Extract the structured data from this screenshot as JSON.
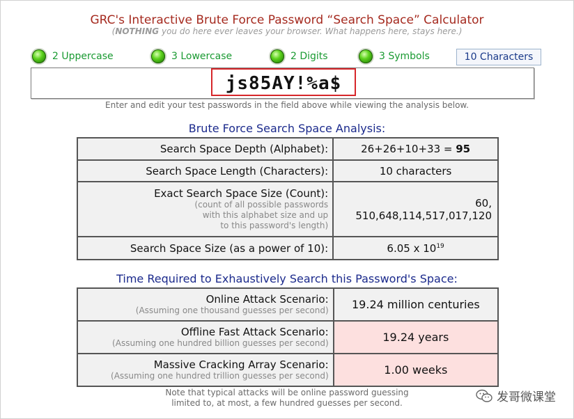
{
  "header": {
    "title": "GRC's Interactive Brute Force Password “Search Space” Calculator",
    "subtitle_bold": "NOTHING",
    "subtitle_rest": " you do here ever leaves your browser. What happens here, stays here.",
    "subtitle_open": "(",
    "subtitle_close": ")"
  },
  "indicators": [
    {
      "label": "2 Uppercase",
      "icon": "green-led-icon",
      "color": "#1a9a32"
    },
    {
      "label": "3 Lowercase",
      "icon": "green-led-icon",
      "color": "#1a9a32"
    },
    {
      "label": "2 Digits",
      "icon": "green-led-icon",
      "color": "#1a9a32"
    },
    {
      "label": "3 Symbols",
      "icon": "green-led-icon",
      "color": "#1a9a32"
    }
  ],
  "char_count": "10 Characters",
  "password": {
    "value": "js85AY!%a$"
  },
  "hint": "Enter and edit your test passwords in the field above while viewing the analysis below.",
  "analysis": {
    "title": "Brute Force Search Space Analysis:",
    "rows": [
      {
        "label": "Search Space Depth (Alphabet):",
        "value_plain": "26+26+10+33 = ",
        "value_bold": "95"
      },
      {
        "label": "Search Space Length (Characters):",
        "value": "10 characters"
      },
      {
        "label": "Exact Search Space Size (Count):",
        "note": [
          "(count of all possible passwords",
          "with this alphabet size and up",
          "to this password's length)"
        ],
        "value_lines": [
          "60,",
          "510,648,114,517,017,120"
        ]
      },
      {
        "label": "Search Space Size (as a power of 10):",
        "value_base": "6.05 x 10",
        "value_exp": "19"
      }
    ]
  },
  "time": {
    "title": "Time Required to Exhaustively Search this Password's Space:",
    "rows": [
      {
        "label": "Online Attack Scenario:",
        "note": "(Assuming one thousand guesses per second)",
        "value": "19.24 million centuries"
      },
      {
        "label": "Offline Fast Attack Scenario:",
        "note": "(Assuming one hundred billion guesses per second)",
        "value": "19.24 years"
      },
      {
        "label": "Massive Cracking Array Scenario:",
        "note": "(Assuming one hundred trillion guesses per second)",
        "value": "1.00 weeks"
      }
    ],
    "highlight_color": "#fde0df"
  },
  "footnote": [
    "Note that typical attacks will be online password guessing",
    "limited to, at most, a few hundred guesses per second."
  ],
  "watermark": {
    "text": "发哥微课堂",
    "icon": "wechat-icon"
  },
  "colors": {
    "title": "#a52a1f",
    "section_title": "#1b2a8c",
    "indicator_text": "#1a9a32",
    "password_border": "#d6262a"
  }
}
